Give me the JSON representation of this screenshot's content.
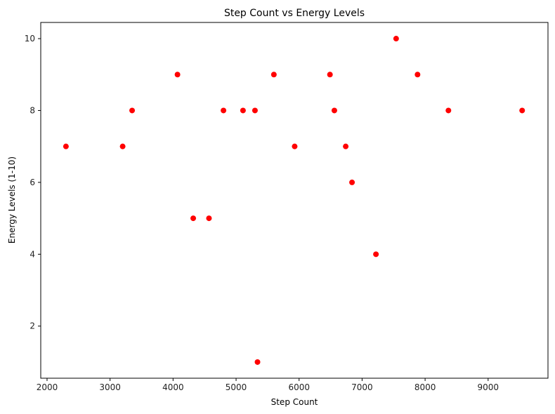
{
  "chart_data": {
    "type": "scatter",
    "title": "Step Count vs Energy Levels",
    "xlabel": "Step Count",
    "ylabel": "Energy Levels (1-10)",
    "xlim": [
      1900,
      9950
    ],
    "ylim": [
      0.55,
      10.45
    ],
    "x_ticks": [
      2000,
      3000,
      4000,
      5000,
      6000,
      7000,
      8000,
      9000
    ],
    "y_ticks": [
      2,
      4,
      6,
      8,
      10
    ],
    "grid": false,
    "marker_color": "#ff0000",
    "series": [
      {
        "points": [
          {
            "x": 2300,
            "y": 7
          },
          {
            "x": 3200,
            "y": 7
          },
          {
            "x": 3350,
            "y": 8
          },
          {
            "x": 4070,
            "y": 9
          },
          {
            "x": 4320,
            "y": 5
          },
          {
            "x": 4570,
            "y": 5
          },
          {
            "x": 4800,
            "y": 8
          },
          {
            "x": 5110,
            "y": 8
          },
          {
            "x": 5300,
            "y": 8
          },
          {
            "x": 5340,
            "y": 1
          },
          {
            "x": 5600,
            "y": 9
          },
          {
            "x": 5930,
            "y": 7
          },
          {
            "x": 6490,
            "y": 9
          },
          {
            "x": 6560,
            "y": 8
          },
          {
            "x": 6740,
            "y": 7
          },
          {
            "x": 6840,
            "y": 6
          },
          {
            "x": 7220,
            "y": 4
          },
          {
            "x": 7540,
            "y": 10
          },
          {
            "x": 7880,
            "y": 9
          },
          {
            "x": 8370,
            "y": 8
          },
          {
            "x": 9540,
            "y": 8
          }
        ]
      }
    ]
  }
}
